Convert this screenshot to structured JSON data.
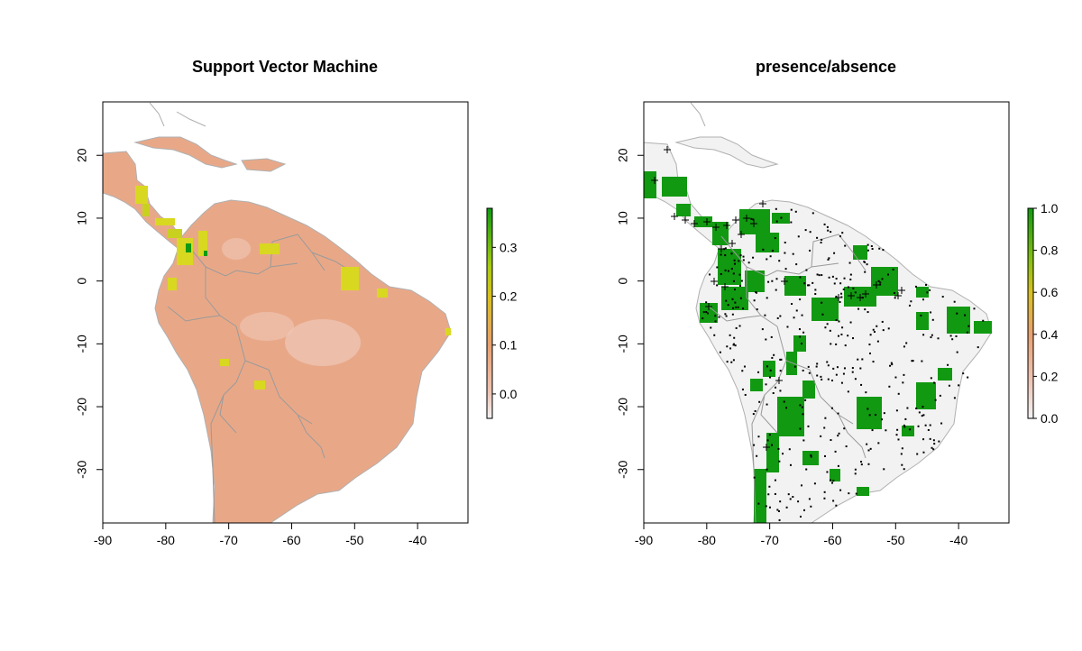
{
  "colors": {
    "land_low": "#e8a888",
    "land_min": "#f0c8b8",
    "yellow": "#d8d820",
    "green": "#119911",
    "bright_green": "#22bb22",
    "absence_fill": "#f2f2f2",
    "border": "#9a9a9a",
    "coast": "#b0b0b0",
    "point": "#000000"
  },
  "icons": {
    "presence_marker": "plus-icon",
    "absence_marker": "dot-icon"
  },
  "panels": [
    {
      "title": "Support Vector Machine",
      "x_ticks": [
        "-90",
        "-80",
        "-70",
        "-60",
        "-50",
        "-40"
      ],
      "y_ticks": [
        "20",
        "10",
        "0",
        "-10",
        "-20",
        "-30"
      ],
      "legend_ticks": [
        "0.3",
        "0.2",
        "0.1",
        "0.0"
      ],
      "legend_values": [
        0.3,
        0.2,
        0.1,
        0.0
      ],
      "legend_range": [
        -0.05,
        0.38
      ]
    },
    {
      "title": "presence/absence",
      "x_ticks": [
        "-90",
        "-80",
        "-70",
        "-60",
        "-50",
        "-40"
      ],
      "y_ticks": [
        "20",
        "10",
        "0",
        "-10",
        "-20",
        "-30"
      ],
      "legend_ticks": [
        "1.0",
        "0.8",
        "0.6",
        "0.4",
        "0.2",
        "0.0"
      ],
      "legend_values": [
        1.0,
        0.8,
        0.6,
        0.4,
        0.2,
        0.0
      ],
      "legend_range": [
        0.0,
        1.0
      ]
    }
  ],
  "extent": {
    "lon": [
      -90,
      -32
    ],
    "lat": [
      -38.5,
      28.5
    ]
  },
  "x_values": [
    -90,
    -80,
    -70,
    -60,
    -50,
    -40
  ],
  "y_values": [
    20,
    10,
    0,
    -10,
    -20,
    -30
  ]
}
